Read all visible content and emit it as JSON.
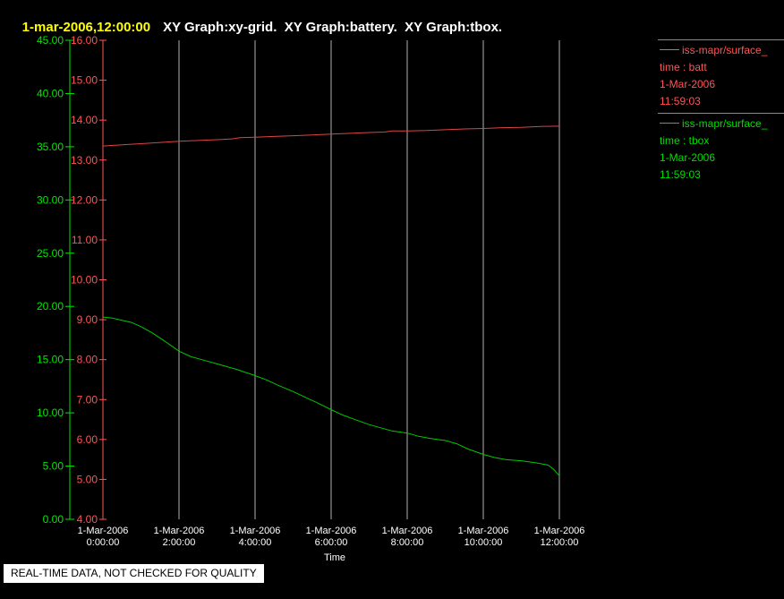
{
  "header": {
    "timestamp": "1-mar-2006,12:00:00",
    "timestamp_color": "#ffff00",
    "graphs": "XY Graph:xy-grid.  XY Graph:battery.  XY Graph:tbox.",
    "graphs_color": "#ffffff"
  },
  "footer": {
    "notice": "REAL-TIME DATA, NOT CHECKED FOR QUALITY",
    "background": "#ffffff",
    "text_color": "#000000"
  },
  "legend": {
    "rule_color": "#8a8a8a",
    "entries": [
      {
        "name": "iss-mapr/surface_",
        "param": "time : batt",
        "date": "1-Mar-2006",
        "time": "11:59:03",
        "color": "#ff5555"
      },
      {
        "name": "iss-mapr/surface_",
        "param": "time : tbox",
        "date": "1-Mar-2006",
        "time": "11:59:03",
        "color": "#00dd00"
      }
    ]
  },
  "chart_data": {
    "type": "line",
    "title": "XY Graph:xy-grid.  XY Graph:battery.  XY Graph:tbox.",
    "xlabel": "Time",
    "background": "#000000",
    "x_axis": {
      "range_hours": [
        0,
        12
      ],
      "ticks": [
        {
          "hour": 0,
          "date": "1-Mar-2006",
          "time": "0:00:00"
        },
        {
          "hour": 2,
          "date": "1-Mar-2006",
          "time": "2:00:00"
        },
        {
          "hour": 4,
          "date": "1-Mar-2006",
          "time": "4:00:00"
        },
        {
          "hour": 6,
          "date": "1-Mar-2006",
          "time": "6:00:00"
        },
        {
          "hour": 8,
          "date": "1-Mar-2006",
          "time": "8:00:00"
        },
        {
          "hour": 10,
          "date": "1-Mar-2006",
          "time": "10:00:00"
        },
        {
          "hour": 12,
          "date": "1-Mar-2006",
          "time": "12:00:00"
        }
      ],
      "gridline_hours": [
        2,
        4,
        6,
        8,
        10,
        12
      ],
      "grid_color": "#b0b0b0",
      "label_color": "#ffffff"
    },
    "left_axis": {
      "min": 0,
      "max": 45,
      "step": 5,
      "color": "#00e800",
      "tick_labels": [
        "0.00",
        "5.00",
        "10.00",
        "15.00",
        "20.00",
        "25.00",
        "30.00",
        "35.00",
        "40.00",
        "45.00"
      ]
    },
    "right_axis": {
      "min": 4,
      "max": 16,
      "step": 1,
      "color": "#ff5555",
      "tick_labels": [
        "4.00",
        "5.00",
        "6.00",
        "7.00",
        "8.00",
        "9.00",
        "10.00",
        "11.00",
        "12.00",
        "13.00",
        "14.00",
        "15.00",
        "16.00"
      ]
    },
    "series": [
      {
        "name": "batt",
        "axis": "right",
        "color": "#dd4444",
        "points": [
          [
            0,
            13.35
          ],
          [
            0.5,
            13.38
          ],
          [
            1,
            13.41
          ],
          [
            1.5,
            13.44
          ],
          [
            2,
            13.47
          ],
          [
            2.5,
            13.49
          ],
          [
            3,
            13.51
          ],
          [
            3.4,
            13.53
          ],
          [
            3.6,
            13.56
          ],
          [
            4,
            13.57
          ],
          [
            4.5,
            13.59
          ],
          [
            5,
            13.61
          ],
          [
            5.5,
            13.63
          ],
          [
            6,
            13.65
          ],
          [
            6.5,
            13.67
          ],
          [
            7,
            13.69
          ],
          [
            7.4,
            13.7
          ],
          [
            7.6,
            13.73
          ],
          [
            8,
            13.73
          ],
          [
            8.5,
            13.74
          ],
          [
            9,
            13.76
          ],
          [
            9.5,
            13.78
          ],
          [
            10,
            13.79
          ],
          [
            10.5,
            13.81
          ],
          [
            11,
            13.82
          ],
          [
            11.5,
            13.84
          ],
          [
            12,
            13.85
          ]
        ]
      },
      {
        "name": "tbox",
        "axis": "left",
        "color": "#00c800",
        "points": [
          [
            0,
            19.0
          ],
          [
            0.25,
            18.9
          ],
          [
            0.5,
            18.7
          ],
          [
            0.75,
            18.5
          ],
          [
            1,
            18.1
          ],
          [
            1.3,
            17.5
          ],
          [
            1.6,
            16.8
          ],
          [
            2,
            15.8
          ],
          [
            2.3,
            15.3
          ],
          [
            2.6,
            15.0
          ],
          [
            3,
            14.6
          ],
          [
            3.5,
            14.1
          ],
          [
            4,
            13.5
          ],
          [
            4.3,
            13.1
          ],
          [
            4.6,
            12.6
          ],
          [
            5,
            12.0
          ],
          [
            5.3,
            11.5
          ],
          [
            5.6,
            11.0
          ],
          [
            6,
            10.3
          ],
          [
            6.3,
            9.8
          ],
          [
            6.6,
            9.4
          ],
          [
            7,
            8.9
          ],
          [
            7.3,
            8.6
          ],
          [
            7.6,
            8.3
          ],
          [
            8,
            8.1
          ],
          [
            8.3,
            7.8
          ],
          [
            8.6,
            7.6
          ],
          [
            9,
            7.4
          ],
          [
            9.3,
            7.1
          ],
          [
            9.6,
            6.6
          ],
          [
            10,
            6.1
          ],
          [
            10.3,
            5.8
          ],
          [
            10.6,
            5.6
          ],
          [
            11,
            5.5
          ],
          [
            11.4,
            5.3
          ],
          [
            11.7,
            5.1
          ],
          [
            11.85,
            4.7
          ],
          [
            12,
            4.1
          ]
        ]
      }
    ]
  }
}
